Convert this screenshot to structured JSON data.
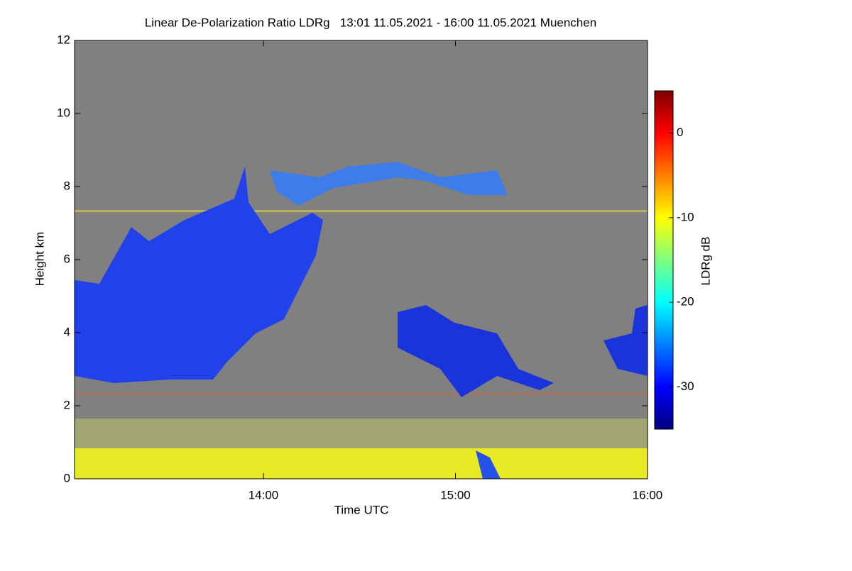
{
  "chart_data": {
    "type": "heatmap",
    "title": "Linear De-Polarization Ratio LDRg   13:01 11.05.2021 - 16:00 11.05.2021 Muenchen",
    "x_label": "Time UTC",
    "y_label": "Height km",
    "xlim": [
      1,
      180
    ],
    "xticks": [
      {
        "value": 60,
        "label": "14:00"
      },
      {
        "value": 120,
        "label": "15:00"
      },
      {
        "value": 180,
        "label": "16:00"
      }
    ],
    "ylim": [
      0,
      12
    ],
    "yticks": [
      0,
      2,
      4,
      6,
      8,
      10,
      12
    ],
    "colorbar": {
      "label": "LDRg dB",
      "lim": [
        -35,
        5
      ],
      "ticks": [
        0,
        -10,
        -20,
        -30
      ],
      "colormap": [
        "#00007f",
        "#0000ff",
        "#007fff",
        "#00ffff",
        "#7fff7f",
        "#ffff00",
        "#ff7f00",
        "#ff0000",
        "#7f0000"
      ]
    },
    "background": "#808080"
  }
}
